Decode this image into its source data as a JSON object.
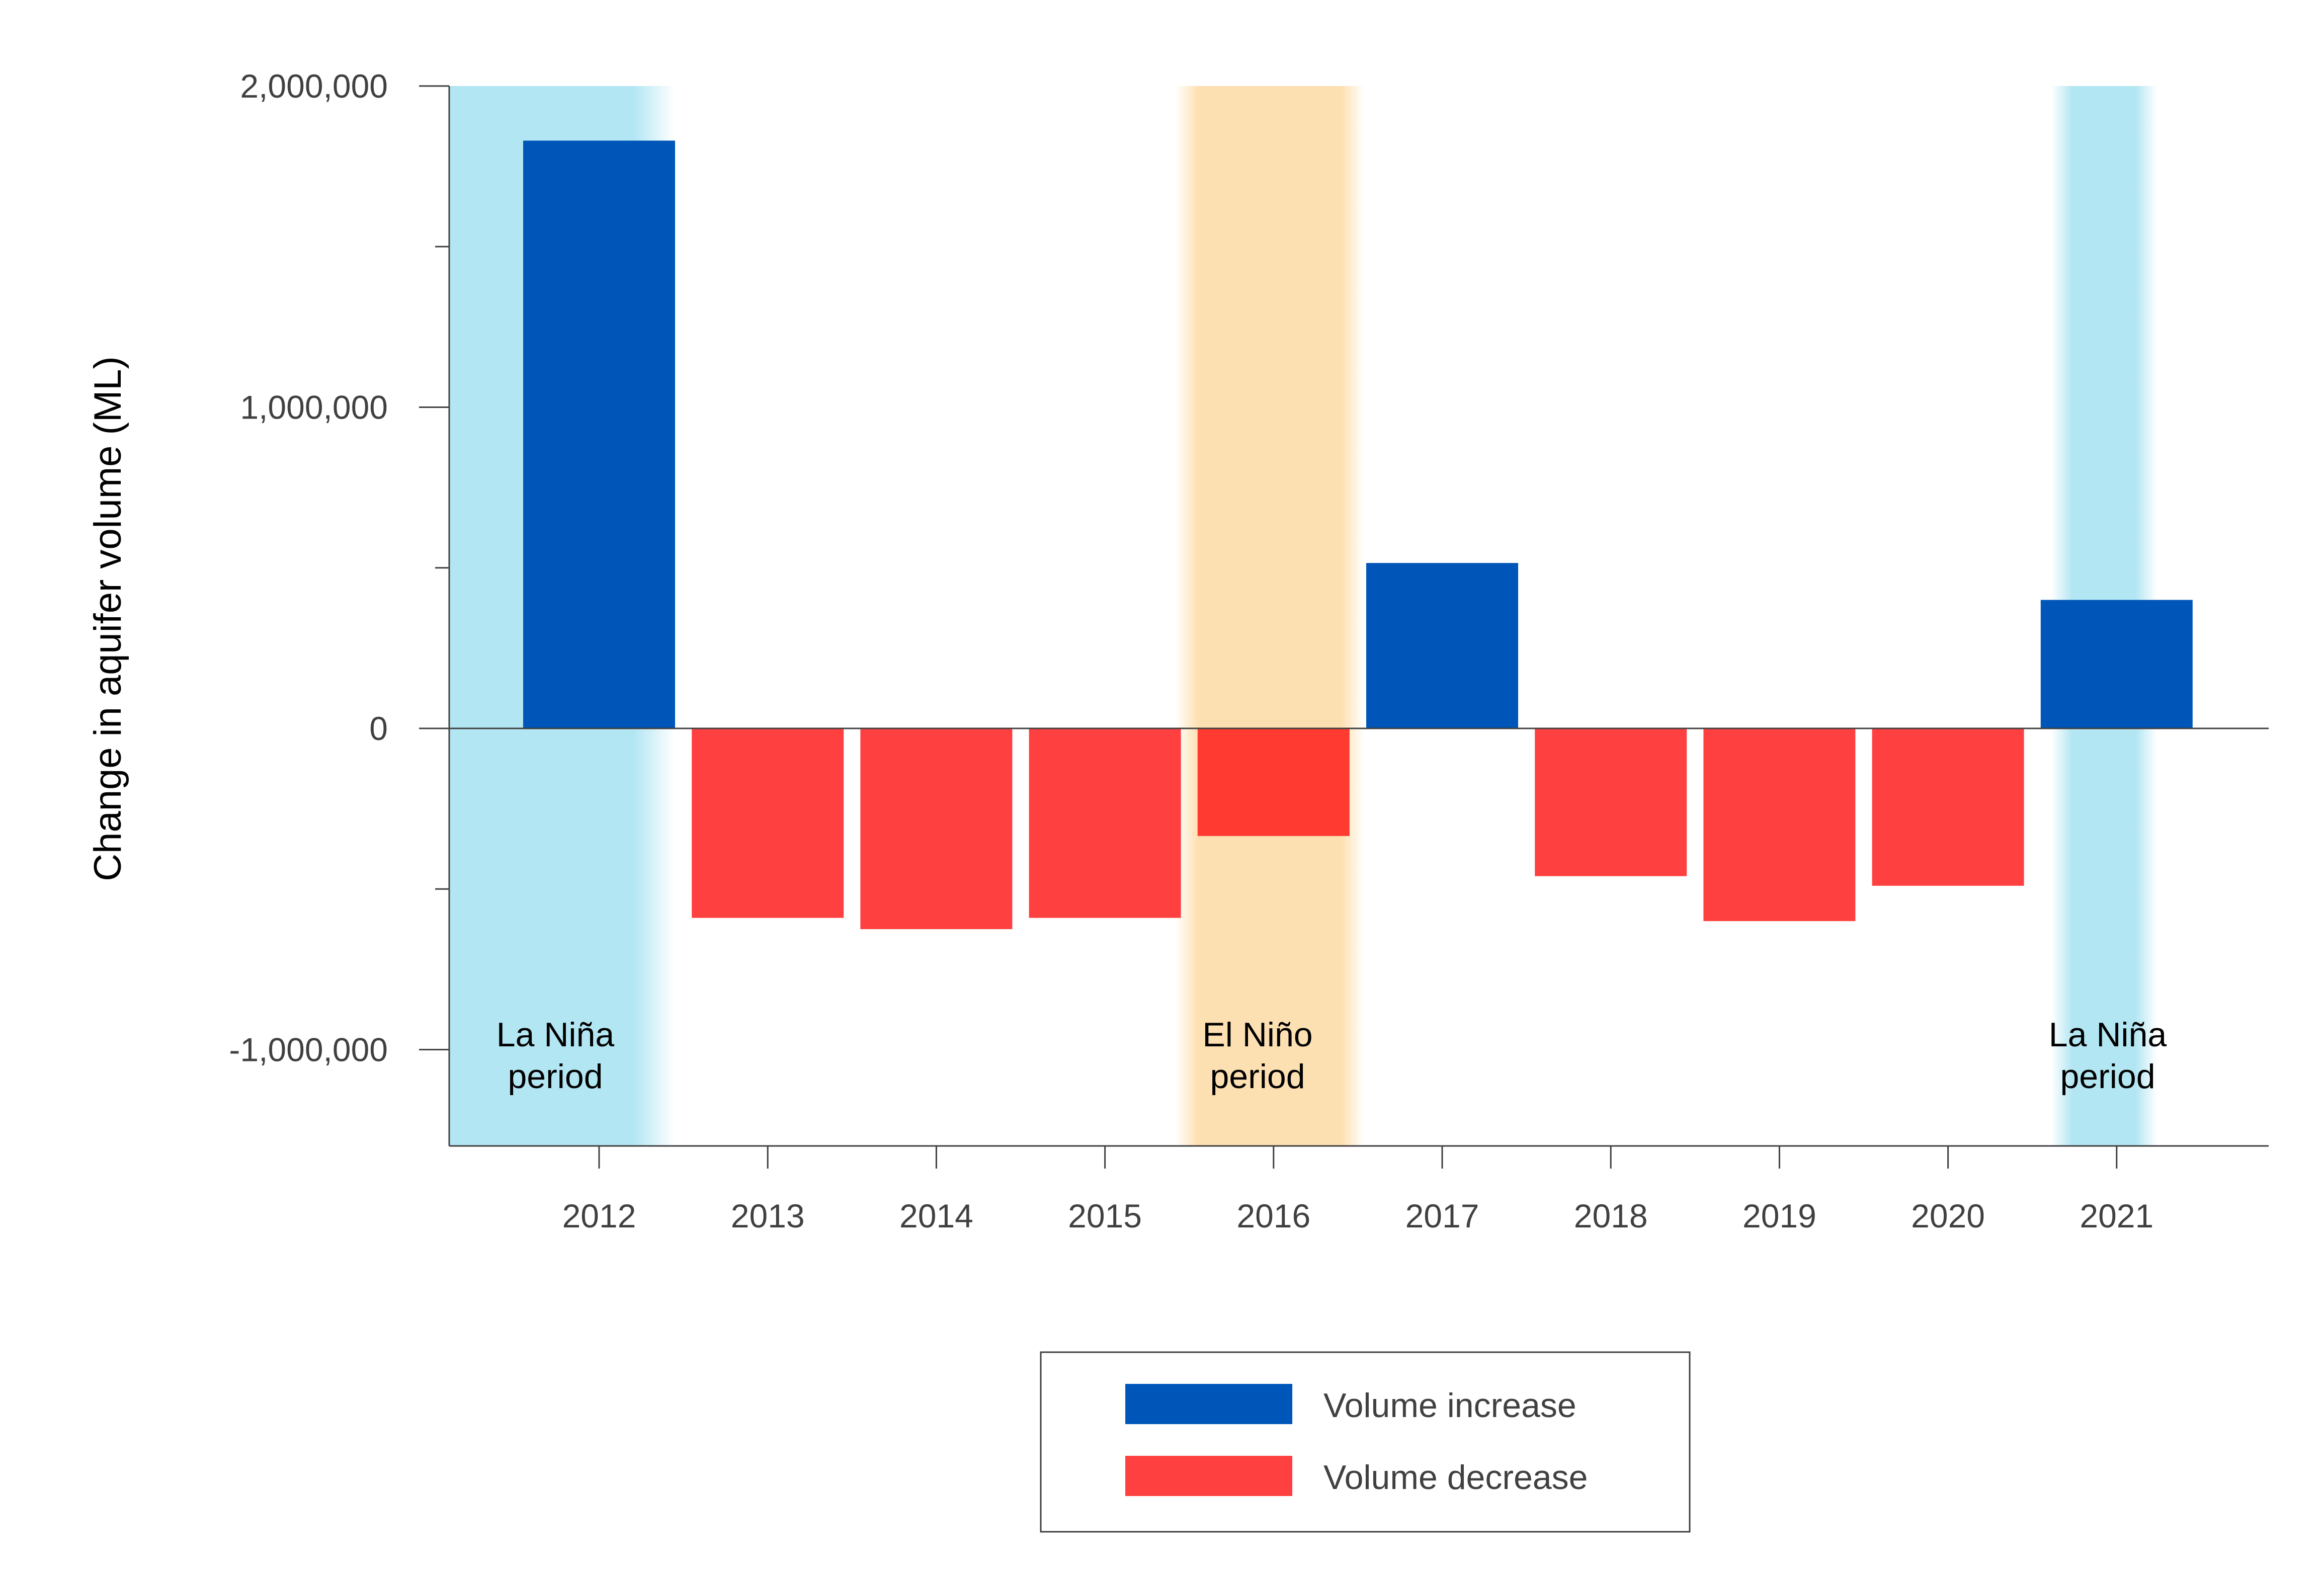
{
  "chart_data": {
    "type": "bar",
    "title": "",
    "xlabel": "",
    "ylabel": "Change in aquifer volume (ML)",
    "ylim": [
      -1300000,
      2000000
    ],
    "yticks": [
      {
        "value": 2000000,
        "label": "2,000,000"
      },
      {
        "value": 1000000,
        "label": "1,000,000"
      },
      {
        "value": 0,
        "label": "0"
      },
      {
        "value": -1000000,
        "label": "-1,000,000"
      }
    ],
    "categories": [
      "2012",
      "2013",
      "2014",
      "2015",
      "2016",
      "2017",
      "2018",
      "2019",
      "2020",
      "2021"
    ],
    "values": [
      1830000,
      -590000,
      -625000,
      -590000,
      -335000,
      515000,
      -460000,
      -600000,
      -490000,
      400000
    ],
    "colors": {
      "increase": "#0055b8",
      "decrease": "#ff4040",
      "decrease_el_nino": "#ff3a30",
      "la_nina_band": "#b3e6f3",
      "el_nino_band": "#fde0b2",
      "axis": "#404040"
    },
    "periods": [
      {
        "type": "la_nina",
        "label_line1": "La Niña",
        "label_line2": "period",
        "start": "2012",
        "end": "2012",
        "extend_left": true
      },
      {
        "type": "el_nino",
        "label_line1": "El Niño",
        "label_line2": "period",
        "start": "2016",
        "end": "2016",
        "extend_left": false
      },
      {
        "type": "la_nina",
        "label_line1": "La Niña",
        "label_line2": "period",
        "start": "2021",
        "end": "2021",
        "extend_left": false
      }
    ],
    "legend": {
      "placement": "bottom-center",
      "items": [
        {
          "label": "Volume increase",
          "color": "#0055b8"
        },
        {
          "label": "Volume decrease",
          "color": "#ff4040"
        }
      ]
    }
  }
}
